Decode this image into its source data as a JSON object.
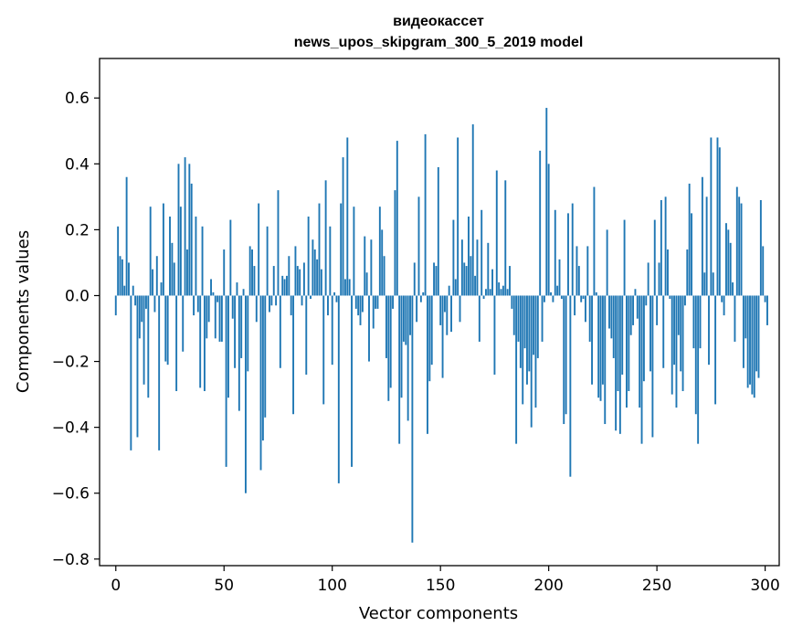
{
  "chart_data": {
    "type": "bar",
    "title": "видеокассет",
    "subtitle": "news_upos_skipgram_300_5_2019 model",
    "xlabel": "Vector components",
    "ylabel": "Components values",
    "xlim": [
      -7.5,
      306.5
    ],
    "ylim": [
      -0.82,
      0.72
    ],
    "xticks": [
      0,
      50,
      100,
      150,
      200,
      250,
      300
    ],
    "xtick_labels": [
      "0",
      "50",
      "100",
      "150",
      "200",
      "250",
      "300"
    ],
    "yticks": [
      -0.8,
      -0.6,
      -0.4,
      -0.2,
      0.0,
      0.2,
      0.4,
      0.6
    ],
    "ytick_labels": [
      "−0.8",
      "−0.6",
      "−0.4",
      "−0.2",
      "0.0",
      "0.2",
      "0.4",
      "0.6"
    ],
    "bar_color": "#1f77b4",
    "values": [
      -0.06,
      0.21,
      0.12,
      0.11,
      0.03,
      0.36,
      0.1,
      -0.47,
      0.03,
      -0.03,
      -0.43,
      -0.13,
      -0.08,
      -0.27,
      -0.04,
      -0.31,
      0.27,
      0.08,
      -0.05,
      0.12,
      -0.47,
      0.04,
      0.28,
      -0.2,
      -0.21,
      0.24,
      0.16,
      0.1,
      -0.29,
      0.4,
      0.27,
      -0.17,
      0.42,
      0.14,
      0.4,
      0.34,
      -0.06,
      0.24,
      -0.05,
      -0.28,
      0.21,
      -0.29,
      -0.13,
      -0.08,
      0.05,
      0.01,
      -0.13,
      -0.02,
      -0.14,
      -0.14,
      0.14,
      -0.52,
      -0.31,
      0.23,
      -0.07,
      -0.22,
      0.04,
      -0.35,
      -0.19,
      0.02,
      -0.6,
      -0.23,
      0.15,
      0.14,
      0.09,
      -0.08,
      0.28,
      -0.53,
      -0.44,
      -0.37,
      0.21,
      -0.05,
      -0.03,
      0.09,
      -0.03,
      0.32,
      -0.22,
      0.06,
      0.05,
      0.06,
      0.12,
      -0.06,
      -0.36,
      0.15,
      0.09,
      0.08,
      -0.03,
      0.1,
      -0.24,
      0.24,
      -0.01,
      0.17,
      0.14,
      0.11,
      0.28,
      0.08,
      -0.33,
      0.35,
      -0.06,
      0.21,
      -0.21,
      0.01,
      -0.02,
      -0.57,
      0.28,
      0.42,
      0.05,
      0.48,
      0.05,
      -0.52,
      0.27,
      -0.04,
      -0.06,
      -0.09,
      -0.05,
      0.18,
      0.07,
      -0.2,
      0.17,
      -0.1,
      -0.04,
      -0.04,
      0.27,
      0.2,
      0.12,
      -0.19,
      -0.32,
      -0.28,
      -0.04,
      0.32,
      0.47,
      -0.45,
      -0.31,
      -0.14,
      -0.15,
      -0.38,
      -0.12,
      -0.75,
      0.1,
      -0.08,
      0.3,
      -0.02,
      0.01,
      0.49,
      -0.42,
      -0.26,
      -0.21,
      0.1,
      0.09,
      0.39,
      -0.09,
      -0.25,
      -0.05,
      -0.12,
      0.03,
      -0.11,
      0.23,
      0.05,
      0.48,
      -0.08,
      0.17,
      0.1,
      0.09,
      0.24,
      0.12,
      0.52,
      0.06,
      0.17,
      -0.14,
      0.26,
      -0.01,
      0.02,
      0.16,
      0.02,
      0.08,
      -0.24,
      0.38,
      0.04,
      0.02,
      0.03,
      0.35,
      0.02,
      0.09,
      -0.04,
      -0.12,
      -0.45,
      -0.14,
      -0.22,
      -0.33,
      -0.16,
      -0.27,
      -0.23,
      -0.4,
      -0.18,
      -0.34,
      -0.19,
      0.44,
      -0.14,
      -0.02,
      0.57,
      0.4,
      0.01,
      -0.02,
      0.26,
      0.03,
      0.11,
      -0.01,
      -0.39,
      -0.36,
      0.25,
      -0.55,
      0.28,
      -0.06,
      0.15,
      0.09,
      -0.02,
      -0.01,
      -0.08,
      0.15,
      -0.14,
      -0.27,
      0.33,
      0.01,
      -0.31,
      -0.32,
      -0.27,
      -0.39,
      0.2,
      -0.1,
      -0.13,
      -0.19,
      -0.41,
      -0.29,
      -0.42,
      -0.24,
      0.23,
      -0.34,
      -0.29,
      -0.12,
      -0.09,
      0.02,
      -0.07,
      -0.34,
      -0.45,
      -0.26,
      -0.03,
      0.1,
      -0.23,
      -0.43,
      0.23,
      -0.09,
      0.1,
      0.29,
      -0.22,
      0.3,
      0.14,
      -0.01,
      -0.3,
      -0.21,
      -0.34,
      -0.12,
      -0.23,
      -0.29,
      -0.03,
      0.14,
      0.34,
      0.25,
      -0.16,
      -0.36,
      -0.45,
      -0.16,
      0.36,
      0.07,
      0.3,
      -0.21,
      0.48,
      0.07,
      -0.33,
      0.48,
      0.45,
      -0.02,
      -0.06,
      0.22,
      0.2,
      0.16,
      0.04,
      -0.14,
      0.33,
      0.3,
      0.28,
      -0.22,
      -0.13,
      -0.28,
      -0.27,
      -0.3,
      -0.31,
      -0.23,
      -0.25,
      0.29,
      0.15,
      -0.02,
      -0.09
    ]
  }
}
